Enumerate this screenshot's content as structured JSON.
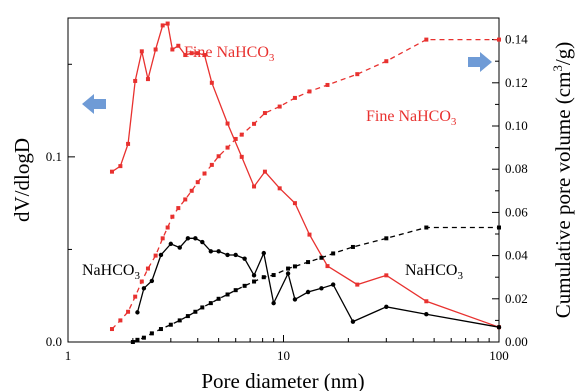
{
  "chart_data": {
    "type": "line",
    "xlabel": "Pore diameter (nm)",
    "ylabel_left": "dV/dlogD",
    "ylabel_right_main": "Cumulative pore volume (cm",
    "ylabel_right_sup": "3",
    "ylabel_right_end": "/g)",
    "x_scale": "log",
    "xlim": [
      1,
      100
    ],
    "ylim_left": [
      0,
      0.175
    ],
    "ylim_right": [
      0,
      0.15
    ],
    "x_ticks": [
      {
        "value": 1,
        "label": "1"
      },
      {
        "value": 10,
        "label": "10"
      },
      {
        "value": 100,
        "label": "100"
      }
    ],
    "y_left_ticks": [
      {
        "value": 0,
        "label": "0.0"
      },
      {
        "value": 0.1,
        "label": "0.1"
      }
    ],
    "y_right_ticks": [
      {
        "value": 0,
        "label": "0.00"
      },
      {
        "value": 0.02,
        "label": "0.02"
      },
      {
        "value": 0.04,
        "label": "0.04"
      },
      {
        "value": 0.06,
        "label": "0.06"
      },
      {
        "value": 0.08,
        "label": "0.08"
      },
      {
        "value": 0.1,
        "label": "0.10"
      },
      {
        "value": 0.12,
        "label": "0.12"
      },
      {
        "value": 0.14,
        "label": "0.14"
      }
    ],
    "grid": false,
    "annotations": {
      "fine_left": {
        "prefix": "Fine NaHCO",
        "sub": "3"
      },
      "fine_right": {
        "prefix": "Fine NaHCO",
        "sub": "3"
      },
      "plain_left": {
        "prefix": "NaHCO",
        "sub": "3"
      },
      "plain_right": {
        "prefix": "NaHCO",
        "sub": "3"
      }
    },
    "colors": {
      "fine": "#e8312f",
      "plain": "#000000",
      "arrow": "#6f9bd6"
    },
    "series": [
      {
        "axis": "left",
        "style": "solid",
        "color": "#e8312f",
        "marker": "square",
        "x": [
          1.6,
          1.75,
          1.9,
          2.05,
          2.2,
          2.35,
          2.55,
          2.75,
          2.9,
          3.05,
          3.25,
          3.5,
          3.75,
          4.0,
          4.3,
          4.65,
          5.5,
          6.4,
          7.3,
          8.2,
          9.6,
          11.3,
          13.2,
          16.0,
          22.0,
          30.0,
          46.0,
          100.0
        ],
        "y": [
          0.092,
          0.095,
          0.107,
          0.141,
          0.157,
          0.142,
          0.158,
          0.171,
          0.172,
          0.158,
          0.16,
          0.155,
          0.156,
          0.156,
          0.155,
          0.14,
          0.118,
          0.1,
          0.084,
          0.092,
          0.083,
          0.075,
          0.058,
          0.041,
          0.031,
          0.036,
          0.022,
          0.008
        ]
      },
      {
        "axis": "left",
        "style": "solid",
        "color": "#000000",
        "marker": "circle",
        "x": [
          2.1,
          2.25,
          2.45,
          2.7,
          3.0,
          3.3,
          3.6,
          3.9,
          4.2,
          4.6,
          5.0,
          5.5,
          6.0,
          6.6,
          7.3,
          8.1,
          9.0,
          10.5,
          11.3,
          13.0,
          15.0,
          17.0,
          21.0,
          30.0,
          46.0,
          100.0
        ],
        "y": [
          0.016,
          0.029,
          0.033,
          0.047,
          0.053,
          0.051,
          0.056,
          0.056,
          0.054,
          0.049,
          0.049,
          0.047,
          0.047,
          0.045,
          0.036,
          0.048,
          0.021,
          0.037,
          0.023,
          0.027,
          0.029,
          0.031,
          0.011,
          0.019,
          0.015,
          0.008
        ]
      },
      {
        "axis": "right",
        "style": "dashed",
        "color": "#e8312f",
        "marker": "square",
        "x": [
          1.6,
          1.75,
          1.9,
          2.05,
          2.2,
          2.35,
          2.55,
          2.75,
          2.9,
          3.05,
          3.25,
          3.5,
          3.75,
          4.0,
          4.3,
          4.65,
          5.0,
          5.5,
          6.0,
          6.4,
          7.3,
          8.2,
          9.6,
          11.3,
          13.2,
          16.0,
          22.0,
          30.0,
          46.0,
          100.0
        ],
        "y": [
          0.006,
          0.01,
          0.014,
          0.021,
          0.028,
          0.034,
          0.04,
          0.048,
          0.053,
          0.058,
          0.062,
          0.066,
          0.07,
          0.074,
          0.078,
          0.082,
          0.086,
          0.09,
          0.094,
          0.096,
          0.101,
          0.106,
          0.109,
          0.113,
          0.116,
          0.119,
          0.124,
          0.13,
          0.14,
          0.14
        ]
      },
      {
        "axis": "right",
        "style": "dashed",
        "color": "#000000",
        "marker": "square",
        "x": [
          2.0,
          2.1,
          2.25,
          2.45,
          2.7,
          3.0,
          3.3,
          3.6,
          3.9,
          4.2,
          4.6,
          5.0,
          5.5,
          6.0,
          6.6,
          7.3,
          8.1,
          9.0,
          10.5,
          11.3,
          13.0,
          15.0,
          17.0,
          21.0,
          30.0,
          46.0,
          100.0
        ],
        "y": [
          0.0,
          0.001,
          0.002,
          0.004,
          0.006,
          0.008,
          0.01,
          0.012,
          0.014,
          0.016,
          0.018,
          0.02,
          0.022,
          0.024,
          0.026,
          0.028,
          0.03,
          0.031,
          0.034,
          0.035,
          0.037,
          0.039,
          0.041,
          0.044,
          0.048,
          0.053,
          0.053
        ]
      }
    ]
  }
}
